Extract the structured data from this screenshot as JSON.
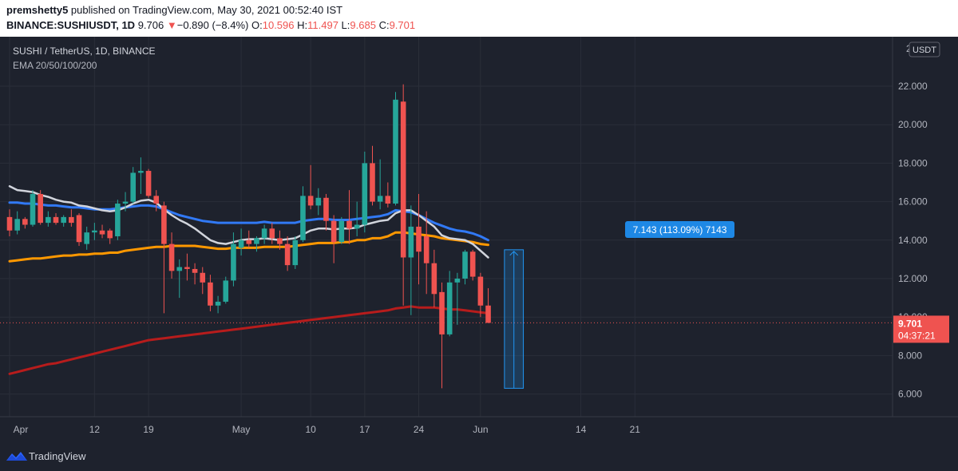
{
  "header": {
    "author": "premshetty5",
    "published": " published on TradingView.com, May 30, 2021 00:52:40 IST",
    "symbol": "BINANCE:SUSHIUSDT, 1D",
    "last": "9.706",
    "arrow": "▼",
    "change": "−0.890 (−8.4%)",
    "o_label": "O:",
    "o": "10.596",
    "h_label": "H:",
    "h": "11.497",
    "l_label": "L:",
    "l": "9.685",
    "c_label": "C:",
    "c": "9.701"
  },
  "legend": {
    "pair": "SUSHI / TetherUS, 1D, BINANCE",
    "indicator": "EMA 20/50/100/200"
  },
  "price_axis": {
    "currency": "USDT",
    "top_partial": "2",
    "ticks": [
      "22.000",
      "20.000",
      "18.000",
      "16.000",
      "14.000",
      "12.000",
      "10.000",
      "8.000",
      "6.000"
    ],
    "last_price": "9.701",
    "countdown": "04:37:21"
  },
  "time_axis": {
    "ticks": [
      "Apr",
      "12",
      "19",
      "May",
      "10",
      "17",
      "24",
      "Jun",
      "14",
      "21"
    ]
  },
  "measure_label": "7.143 (113.09%) 7143",
  "brand": "TradingView",
  "colors": {
    "up": "#26a69a",
    "down": "#ef5350",
    "ema20": "#d1d4dc",
    "ema50": "#2962ff",
    "ema100": "#ff9800",
    "ema200": "#b71c1c",
    "measure": "#2196f3"
  },
  "chart_data": {
    "type": "candlestick",
    "title": "SUSHI / TetherUS, 1D, BINANCE",
    "y_range": [
      5.5,
      23.0
    ],
    "x_range": [
      "2021-04-01",
      "2021-06-28"
    ],
    "candles": [
      {
        "date": "2021-04-01",
        "o": 15.2,
        "h": 15.6,
        "l": 14.2,
        "c": 14.5
      },
      {
        "date": "2021-04-02",
        "o": 14.5,
        "h": 15.5,
        "l": 14.3,
        "c": 15.1
      },
      {
        "date": "2021-04-03",
        "o": 15.1,
        "h": 15.2,
        "l": 14.6,
        "c": 14.8
      },
      {
        "date": "2021-04-04",
        "o": 14.8,
        "h": 16.6,
        "l": 14.7,
        "c": 16.4
      },
      {
        "date": "2021-04-05",
        "o": 16.4,
        "h": 16.6,
        "l": 14.8,
        "c": 14.9
      },
      {
        "date": "2021-04-06",
        "o": 14.9,
        "h": 15.5,
        "l": 14.7,
        "c": 15.2
      },
      {
        "date": "2021-04-07",
        "o": 15.2,
        "h": 15.4,
        "l": 14.8,
        "c": 14.9
      },
      {
        "date": "2021-04-08",
        "o": 14.9,
        "h": 15.3,
        "l": 14.7,
        "c": 15.2
      },
      {
        "date": "2021-04-09",
        "o": 15.2,
        "h": 15.6,
        "l": 14.7,
        "c": 14.9
      },
      {
        "date": "2021-04-10",
        "o": 15.3,
        "h": 15.4,
        "l": 13.7,
        "c": 13.9
      },
      {
        "date": "2021-04-11",
        "o": 13.8,
        "h": 14.7,
        "l": 13.5,
        "c": 14.4
      },
      {
        "date": "2021-04-12",
        "o": 14.4,
        "h": 14.9,
        "l": 14.0,
        "c": 14.5
      },
      {
        "date": "2021-04-13",
        "o": 14.5,
        "h": 14.8,
        "l": 14.1,
        "c": 14.3
      },
      {
        "date": "2021-04-14",
        "o": 14.5,
        "h": 14.6,
        "l": 13.8,
        "c": 14.1
      },
      {
        "date": "2021-04-15",
        "o": 14.2,
        "h": 16.1,
        "l": 14.0,
        "c": 15.9
      },
      {
        "date": "2021-04-16",
        "o": 15.9,
        "h": 16.5,
        "l": 15.5,
        "c": 16.0
      },
      {
        "date": "2021-04-17",
        "o": 16.0,
        "h": 17.8,
        "l": 15.9,
        "c": 17.5
      },
      {
        "date": "2021-04-18",
        "o": 17.5,
        "h": 18.3,
        "l": 16.4,
        "c": 17.6
      },
      {
        "date": "2021-04-19",
        "o": 17.6,
        "h": 17.7,
        "l": 16.2,
        "c": 16.3
      },
      {
        "date": "2021-04-20",
        "o": 16.3,
        "h": 16.6,
        "l": 15.5,
        "c": 15.9
      },
      {
        "date": "2021-04-21",
        "o": 15.8,
        "h": 16.0,
        "l": 10.2,
        "c": 13.8
      },
      {
        "date": "2021-04-22",
        "o": 13.8,
        "h": 14.4,
        "l": 12.0,
        "c": 12.4
      },
      {
        "date": "2021-04-23",
        "o": 12.4,
        "h": 13.0,
        "l": 11.0,
        "c": 12.6
      },
      {
        "date": "2021-04-24",
        "o": 12.6,
        "h": 13.3,
        "l": 11.9,
        "c": 12.5
      },
      {
        "date": "2021-04-25",
        "o": 12.5,
        "h": 12.8,
        "l": 11.7,
        "c": 12.3
      },
      {
        "date": "2021-04-26",
        "o": 12.3,
        "h": 12.6,
        "l": 11.2,
        "c": 11.8
      },
      {
        "date": "2021-04-27",
        "o": 11.8,
        "h": 12.2,
        "l": 10.3,
        "c": 10.6
      },
      {
        "date": "2021-04-28",
        "o": 10.6,
        "h": 11.1,
        "l": 10.2,
        "c": 10.8
      },
      {
        "date": "2021-04-29",
        "o": 10.8,
        "h": 12.1,
        "l": 10.7,
        "c": 11.9
      },
      {
        "date": "2021-04-30",
        "o": 11.9,
        "h": 14.4,
        "l": 11.6,
        "c": 13.8
      },
      {
        "date": "2021-05-01",
        "o": 13.6,
        "h": 14.6,
        "l": 13.2,
        "c": 14.0
      },
      {
        "date": "2021-05-02",
        "o": 14.0,
        "h": 14.5,
        "l": 13.6,
        "c": 13.8
      },
      {
        "date": "2021-05-03",
        "o": 13.8,
        "h": 14.2,
        "l": 13.4,
        "c": 14.1
      },
      {
        "date": "2021-05-04",
        "o": 14.1,
        "h": 14.8,
        "l": 13.8,
        "c": 14.6
      },
      {
        "date": "2021-05-05",
        "o": 14.6,
        "h": 14.9,
        "l": 13.8,
        "c": 14.1
      },
      {
        "date": "2021-05-06",
        "o": 14.1,
        "h": 14.5,
        "l": 13.5,
        "c": 13.8
      },
      {
        "date": "2021-05-07",
        "o": 13.8,
        "h": 14.2,
        "l": 12.4,
        "c": 12.7
      },
      {
        "date": "2021-05-08",
        "o": 12.7,
        "h": 14.2,
        "l": 12.5,
        "c": 14.0
      },
      {
        "date": "2021-05-09",
        "o": 14.0,
        "h": 16.8,
        "l": 13.9,
        "c": 16.3
      },
      {
        "date": "2021-05-10",
        "o": 16.3,
        "h": 17.9,
        "l": 15.6,
        "c": 15.8
      },
      {
        "date": "2021-05-11",
        "o": 15.8,
        "h": 16.7,
        "l": 15.3,
        "c": 16.2
      },
      {
        "date": "2021-05-12",
        "o": 16.2,
        "h": 16.4,
        "l": 14.5,
        "c": 15.0
      },
      {
        "date": "2021-05-13",
        "o": 15.0,
        "h": 15.3,
        "l": 12.8,
        "c": 13.9
      },
      {
        "date": "2021-05-14",
        "o": 13.9,
        "h": 15.2,
        "l": 13.8,
        "c": 15.0
      },
      {
        "date": "2021-05-15",
        "o": 15.0,
        "h": 16.6,
        "l": 13.8,
        "c": 14.6
      },
      {
        "date": "2021-05-16",
        "o": 14.6,
        "h": 16.0,
        "l": 14.2,
        "c": 14.8
      },
      {
        "date": "2021-05-17",
        "o": 14.8,
        "h": 18.6,
        "l": 14.4,
        "c": 18.0
      },
      {
        "date": "2021-05-18",
        "o": 18.0,
        "h": 18.9,
        "l": 15.8,
        "c": 16.0
      },
      {
        "date": "2021-05-19",
        "o": 16.0,
        "h": 18.2,
        "l": 15.6,
        "c": 16.3
      },
      {
        "date": "2021-05-20",
        "o": 16.3,
        "h": 17.0,
        "l": 15.7,
        "c": 15.9
      },
      {
        "date": "2021-05-21",
        "o": 15.9,
        "h": 21.7,
        "l": 15.8,
        "c": 21.3
      },
      {
        "date": "2021-05-22",
        "o": 21.2,
        "h": 22.1,
        "l": 10.6,
        "c": 13.1
      },
      {
        "date": "2021-05-23",
        "o": 13.1,
        "h": 15.8,
        "l": 10.1,
        "c": 14.7
      },
      {
        "date": "2021-05-24",
        "o": 14.7,
        "h": 16.4,
        "l": 11.7,
        "c": 13.4
      },
      {
        "date": "2021-05-25",
        "o": 14.2,
        "h": 15.5,
        "l": 11.2,
        "c": 12.8
      },
      {
        "date": "2021-05-26",
        "o": 12.8,
        "h": 13.5,
        "l": 10.5,
        "c": 11.2
      },
      {
        "date": "2021-05-27",
        "o": 11.3,
        "h": 11.8,
        "l": 6.3,
        "c": 9.1
      },
      {
        "date": "2021-05-28",
        "o": 9.1,
        "h": 12.4,
        "l": 9.0,
        "c": 11.8
      },
      {
        "date": "2021-05-29",
        "o": 11.8,
        "h": 12.3,
        "l": 9.6,
        "c": 12.0
      },
      {
        "date": "2021-05-30",
        "o": 12.0,
        "h": 13.5,
        "l": 11.7,
        "c": 13.4
      },
      {
        "date": "2021-05-31",
        "o": 13.4,
        "h": 13.5,
        "l": 11.9,
        "c": 12.1
      },
      {
        "date": "2021-06-01",
        "o": 12.1,
        "h": 12.3,
        "l": 10.0,
        "c": 10.6
      },
      {
        "date": "2021-06-02",
        "o": 10.6,
        "h": 11.5,
        "l": 9.7,
        "c": 9.7
      }
    ],
    "ema20": [
      16.8,
      16.6,
      16.55,
      16.5,
      16.35,
      16.25,
      16.1,
      16.0,
      15.95,
      15.8,
      15.75,
      15.65,
      15.55,
      15.5,
      15.55,
      15.7,
      15.9,
      16.05,
      16.1,
      15.95,
      15.6,
      15.3,
      15.05,
      14.85,
      14.6,
      14.3,
      14.0,
      13.85,
      13.8,
      13.9,
      14.0,
      14.05,
      14.05,
      14.1,
      14.05,
      14.0,
      14.05,
      14.1,
      14.3,
      14.5,
      14.6,
      14.6,
      14.55,
      14.6,
      14.6,
      14.65,
      14.8,
      14.9,
      15.0,
      15.05,
      15.4,
      15.55,
      15.55,
      15.3,
      15.0,
      14.7,
      14.25,
      14.1,
      14.05,
      14.0,
      13.8,
      13.45,
      13.1
    ],
    "ema50": [
      15.95,
      15.95,
      15.9,
      15.9,
      15.85,
      15.8,
      15.8,
      15.75,
      15.7,
      15.7,
      15.65,
      15.6,
      15.6,
      15.6,
      15.65,
      15.7,
      15.75,
      15.8,
      15.8,
      15.75,
      15.6,
      15.45,
      15.3,
      15.2,
      15.1,
      15.0,
      14.95,
      14.9,
      14.9,
      14.9,
      14.9,
      14.9,
      14.9,
      14.95,
      14.9,
      14.9,
      14.9,
      14.9,
      15.0,
      15.05,
      15.1,
      15.1,
      15.05,
      15.05,
      15.05,
      15.1,
      15.15,
      15.2,
      15.25,
      15.35,
      15.55,
      15.5,
      15.45,
      15.3,
      15.1,
      14.9,
      14.75,
      14.6,
      14.5,
      14.45,
      14.35,
      14.2,
      14.0
    ],
    "ema100": [
      12.9,
      12.95,
      13.0,
      13.05,
      13.05,
      13.1,
      13.15,
      13.2,
      13.2,
      13.25,
      13.25,
      13.3,
      13.3,
      13.35,
      13.35,
      13.45,
      13.5,
      13.55,
      13.6,
      13.65,
      13.65,
      13.7,
      13.7,
      13.7,
      13.7,
      13.65,
      13.6,
      13.55,
      13.55,
      13.6,
      13.6,
      13.6,
      13.6,
      13.65,
      13.65,
      13.65,
      13.65,
      13.7,
      13.75,
      13.8,
      13.85,
      13.85,
      13.85,
      13.9,
      13.9,
      14.0,
      14.0,
      14.1,
      14.1,
      14.2,
      14.4,
      14.4,
      14.35,
      14.3,
      14.25,
      14.2,
      14.1,
      14.05,
      14.0,
      13.95,
      13.9,
      13.8,
      13.75
    ],
    "ema200": [
      7.05,
      7.15,
      7.25,
      7.35,
      7.45,
      7.55,
      7.6,
      7.7,
      7.8,
      7.9,
      8.0,
      8.1,
      8.2,
      8.3,
      8.4,
      8.5,
      8.6,
      8.7,
      8.8,
      8.85,
      8.9,
      8.95,
      9.0,
      9.05,
      9.1,
      9.15,
      9.2,
      9.25,
      9.3,
      9.35,
      9.4,
      9.45,
      9.5,
      9.55,
      9.6,
      9.65,
      9.7,
      9.75,
      9.8,
      9.85,
      9.9,
      9.95,
      10.0,
      10.05,
      10.1,
      10.15,
      10.2,
      10.25,
      10.3,
      10.35,
      10.45,
      10.5,
      10.55,
      10.5,
      10.5,
      10.5,
      10.45,
      10.4,
      10.4,
      10.35,
      10.3,
      10.25,
      10.2
    ],
    "measure": {
      "from_date": "2021-06-04",
      "to_date": "2021-06-05",
      "low": 6.3,
      "high": 13.5
    }
  }
}
